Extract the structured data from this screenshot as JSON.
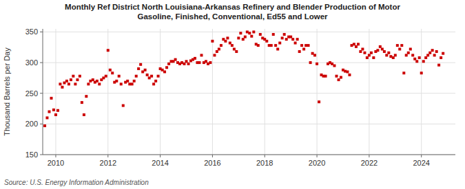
{
  "chart_data": {
    "type": "scatter",
    "title": "Monthly Ref District North Louisiana-Arkansas Refinery and Blender Production of Motor\nGasoline, Finished, Conventional, Ed55 and Lower",
    "y_label": "Thousand Barrels per Day",
    "source": "Source: U.S. Energy Information Administration",
    "color": "#cc0000",
    "marker": "square",
    "grid": true,
    "xlim": [
      2009.5,
      2025.3
    ],
    "xticks": [
      2010,
      2012,
      2014,
      2016,
      2018,
      2020,
      2022,
      2024
    ],
    "ylim": [
      150,
      355
    ],
    "yticks": [
      150,
      200,
      250,
      300,
      350
    ],
    "x": [
      2009.58,
      2009.67,
      2009.75,
      2009.83,
      2009.92,
      2010.0,
      2010.08,
      2010.17,
      2010.25,
      2010.33,
      2010.42,
      2010.5,
      2010.58,
      2010.67,
      2010.75,
      2010.83,
      2010.92,
      2011.0,
      2011.08,
      2011.17,
      2011.25,
      2011.33,
      2011.42,
      2011.5,
      2011.58,
      2011.67,
      2011.75,
      2011.83,
      2011.92,
      2012.0,
      2012.08,
      2012.17,
      2012.25,
      2012.33,
      2012.42,
      2012.5,
      2012.58,
      2012.67,
      2012.75,
      2012.83,
      2012.92,
      2013.0,
      2013.08,
      2013.17,
      2013.25,
      2013.33,
      2013.42,
      2013.5,
      2013.58,
      2013.67,
      2013.75,
      2013.83,
      2013.92,
      2014.0,
      2014.08,
      2014.17,
      2014.25,
      2014.33,
      2014.42,
      2014.5,
      2014.58,
      2014.67,
      2014.75,
      2014.83,
      2014.92,
      2015.0,
      2015.08,
      2015.17,
      2015.25,
      2015.33,
      2015.42,
      2015.5,
      2015.58,
      2015.67,
      2015.75,
      2015.83,
      2015.92,
      2016.0,
      2016.08,
      2016.17,
      2016.25,
      2016.33,
      2016.42,
      2016.5,
      2016.58,
      2016.67,
      2016.75,
      2016.83,
      2016.92,
      2017.0,
      2017.08,
      2017.17,
      2017.25,
      2017.33,
      2017.42,
      2017.5,
      2017.58,
      2017.67,
      2017.75,
      2017.83,
      2017.92,
      2018.0,
      2018.08,
      2018.17,
      2018.25,
      2018.33,
      2018.42,
      2018.5,
      2018.58,
      2018.67,
      2018.75,
      2018.83,
      2018.92,
      2019.0,
      2019.08,
      2019.17,
      2019.25,
      2019.33,
      2019.42,
      2019.5,
      2019.58,
      2019.67,
      2019.75,
      2019.83,
      2019.92,
      2020.0,
      2020.08,
      2020.17,
      2020.25,
      2020.33,
      2020.42,
      2020.5,
      2020.58,
      2020.67,
      2020.75,
      2020.83,
      2020.92,
      2021.0,
      2021.08,
      2021.17,
      2021.25,
      2021.33,
      2021.42,
      2021.5,
      2021.58,
      2021.67,
      2021.75,
      2021.83,
      2021.92,
      2022.0,
      2022.08,
      2022.17,
      2022.25,
      2022.33,
      2022.42,
      2022.5,
      2022.58,
      2022.67,
      2022.75,
      2022.83,
      2022.92,
      2023.0,
      2023.08,
      2023.17,
      2023.25,
      2023.33,
      2023.42,
      2023.5,
      2023.58,
      2023.67,
      2023.75,
      2023.83,
      2023.92,
      2024.0,
      2024.08,
      2024.17,
      2024.25,
      2024.33,
      2024.42,
      2024.5,
      2024.58,
      2024.67,
      2024.75,
      2024.83
    ],
    "values": [
      197,
      210,
      220,
      242,
      223,
      215,
      222,
      265,
      260,
      267,
      270,
      265,
      272,
      278,
      265,
      272,
      278,
      235,
      215,
      245,
      265,
      270,
      272,
      268,
      270,
      265,
      272,
      275,
      278,
      320,
      288,
      283,
      268,
      270,
      278,
      265,
      230,
      268,
      270,
      265,
      265,
      270,
      278,
      290,
      297,
      285,
      288,
      280,
      275,
      278,
      265,
      270,
      278,
      290,
      288,
      285,
      292,
      298,
      302,
      302,
      305,
      300,
      298,
      300,
      298,
      302,
      298,
      303,
      305,
      307,
      300,
      300,
      312,
      300,
      302,
      298,
      300,
      335,
      312,
      318,
      322,
      328,
      338,
      335,
      340,
      332,
      328,
      322,
      318,
      340,
      348,
      338,
      342,
      350,
      348,
      343,
      350,
      330,
      328,
      346,
      340,
      338,
      335,
      328,
      328,
      346,
      328,
      322,
      332,
      340,
      346,
      338,
      342,
      342,
      338,
      332,
      338,
      318,
      328,
      322,
      328,
      328,
      300,
      315,
      312,
      298,
      236,
      280,
      278,
      278,
      298,
      300,
      298,
      295,
      278,
      272,
      276,
      288,
      286,
      285,
      280,
      328,
      330,
      326,
      330,
      318,
      322,
      316,
      308,
      312,
      316,
      308,
      318,
      320,
      326,
      322,
      318,
      312,
      316,
      310,
      308,
      312,
      328,
      322,
      328,
      283,
      312,
      316,
      322,
      312,
      306,
      302,
      308,
      283,
      302,
      308,
      312,
      316,
      320,
      312,
      318,
      296,
      308,
      315
    ]
  }
}
